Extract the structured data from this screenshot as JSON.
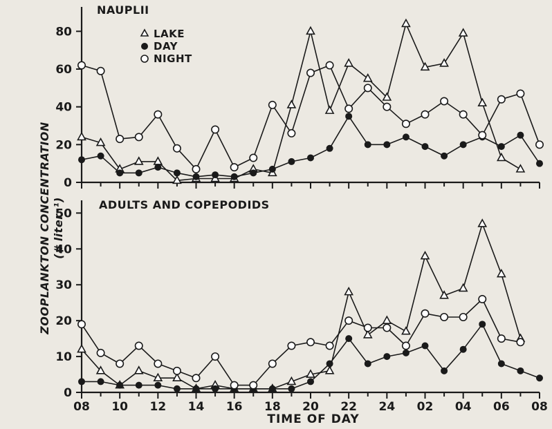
{
  "chart_data": [
    {
      "type": "line",
      "panel": "top",
      "title": "NAUPLII",
      "ylim": [
        0,
        90
      ],
      "yticks": [
        "0",
        "20",
        "40",
        "60",
        "80"
      ],
      "ytick_values": [
        0,
        20,
        40,
        60,
        80
      ],
      "xlim": [
        0,
        24
      ],
      "legend": {
        "placement": "top-left",
        "entries": [
          "LAKE",
          "DAY",
          "NIGHT"
        ]
      },
      "series": [
        {
          "name": "LAKE",
          "marker": "triangle",
          "x": [
            0,
            1,
            2,
            3,
            4,
            5,
            6,
            7,
            8,
            9,
            10,
            11,
            12,
            13,
            14,
            15,
            16,
            17,
            18,
            19,
            20,
            21,
            22,
            23,
            24
          ],
          "values": [
            24,
            21,
            7,
            11,
            11,
            1,
            2,
            2,
            2,
            7,
            5,
            41,
            80,
            38,
            63,
            55,
            45,
            84,
            61,
            63,
            79,
            42,
            13,
            7,
            null
          ]
        },
        {
          "name": "DAY",
          "marker": "filled-circle",
          "x": [
            0,
            1,
            2,
            3,
            4,
            5,
            6,
            7,
            8,
            9,
            10,
            11,
            12,
            13,
            14,
            15,
            16,
            17,
            18,
            19,
            20,
            21,
            22,
            23,
            24
          ],
          "values": [
            12,
            14,
            5,
            5,
            8,
            5,
            3,
            4,
            3,
            5,
            7,
            11,
            13,
            18,
            35,
            20,
            20,
            24,
            19,
            14,
            20,
            24,
            19,
            25,
            10
          ]
        },
        {
          "name": "NIGHT",
          "marker": "open-circle",
          "x": [
            0,
            1,
            2,
            3,
            4,
            5,
            6,
            7,
            8,
            9,
            10,
            11,
            12,
            13,
            14,
            15,
            16,
            17,
            18,
            19,
            20,
            21,
            22,
            23,
            24
          ],
          "values": [
            62,
            59,
            23,
            24,
            36,
            18,
            7,
            28,
            8,
            13,
            41,
            26,
            58,
            62,
            39,
            50,
            40,
            31,
            36,
            43,
            36,
            25,
            44,
            47,
            20
          ]
        }
      ]
    },
    {
      "type": "line",
      "panel": "bottom",
      "title": "ADULTS AND COPEPODIDS",
      "ylim": [
        0,
        50
      ],
      "yticks": [
        "0",
        "10",
        "20",
        "30",
        "40",
        "50"
      ],
      "ytick_values": [
        0,
        10,
        20,
        30,
        40,
        50
      ],
      "xlim": [
        0,
        24
      ],
      "xlabel": "TIME OF DAY",
      "xticks": [
        "08",
        "10",
        "12",
        "14",
        "16",
        "18",
        "20",
        "22",
        "24",
        "02",
        "04",
        "06",
        "08"
      ],
      "xtick_positions": [
        0,
        2,
        4,
        6,
        8,
        10,
        12,
        14,
        16,
        18,
        20,
        22,
        24
      ],
      "series": [
        {
          "name": "LAKE",
          "marker": "triangle",
          "x": [
            0,
            1,
            2,
            3,
            4,
            5,
            6,
            7,
            8,
            9,
            10,
            11,
            12,
            13,
            14,
            15,
            16,
            17,
            18,
            19,
            20,
            21,
            22,
            23,
            24
          ],
          "values": [
            12,
            6,
            2,
            6,
            4,
            4,
            1,
            2,
            1,
            1,
            1,
            3,
            5,
            6,
            28,
            16,
            20,
            17,
            38,
            27,
            29,
            47,
            33,
            15,
            null
          ]
        },
        {
          "name": "DAY",
          "marker": "filled-circle",
          "x": [
            0,
            1,
            2,
            3,
            4,
            5,
            6,
            7,
            8,
            9,
            10,
            11,
            12,
            13,
            14,
            15,
            16,
            17,
            18,
            19,
            20,
            21,
            22,
            23,
            24
          ],
          "values": [
            3,
            3,
            2,
            2,
            2,
            1,
            1,
            1,
            1,
            1,
            1,
            1,
            3,
            8,
            15,
            8,
            10,
            11,
            13,
            6,
            12,
            19,
            8,
            6,
            4
          ]
        },
        {
          "name": "NIGHT",
          "marker": "open-circle",
          "x": [
            0,
            1,
            2,
            3,
            4,
            5,
            6,
            7,
            8,
            9,
            10,
            11,
            12,
            13,
            14,
            15,
            16,
            17,
            18,
            19,
            20,
            21,
            22,
            23,
            24
          ],
          "values": [
            19,
            11,
            8,
            13,
            8,
            6,
            4,
            10,
            2,
            2,
            8,
            13,
            14,
            13,
            20,
            18,
            18,
            13,
            22,
            21,
            21,
            26,
            15,
            14,
            null
          ]
        }
      ]
    }
  ],
  "figure": {
    "y_axis_title": "ZOOPLANKTON CONCENTRATION",
    "y_axis_units": "(# liter⁻¹)",
    "colors": {
      "ink": "#1a1a1a",
      "paper": "#ece9e2"
    }
  }
}
